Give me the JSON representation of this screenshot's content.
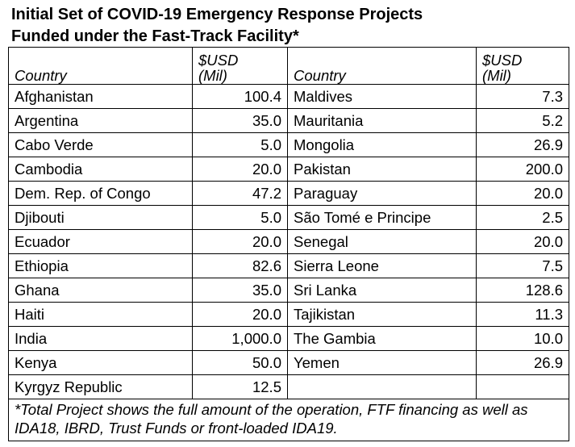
{
  "title": {
    "line1": "Initial Set of COVID-19 Emergency Response Projects",
    "line2": "Funded under the Fast-Track Facility*"
  },
  "table": {
    "headers": {
      "country_left": "Country",
      "usd_left": "$USD\n(Mil)",
      "country_right": "Country",
      "usd_right": "$USD\n(Mil)"
    },
    "rows": [
      {
        "country_left": "Afghanistan",
        "value_left": "100.4",
        "country_right": "Maldives",
        "value_right": "7.3"
      },
      {
        "country_left": "Argentina",
        "value_left": "35.0",
        "country_right": "Mauritania",
        "value_right": "5.2"
      },
      {
        "country_left": "Cabo Verde",
        "value_left": "5.0",
        "country_right": "Mongolia",
        "value_right": "26.9"
      },
      {
        "country_left": "Cambodia",
        "value_left": "20.0",
        "country_right": "Pakistan",
        "value_right": "200.0"
      },
      {
        "country_left": "Dem. Rep. of Congo",
        "value_left": "47.2",
        "country_right": "Paraguay",
        "value_right": "20.0"
      },
      {
        "country_left": "Djibouti",
        "value_left": "5.0",
        "country_right": "São Tomé e Principe",
        "value_right": "2.5"
      },
      {
        "country_left": "Ecuador",
        "value_left": "20.0",
        "country_right": "Senegal",
        "value_right": "20.0"
      },
      {
        "country_left": "Ethiopia",
        "value_left": "82.6",
        "country_right": "Sierra Leone",
        "value_right": "7.5"
      },
      {
        "country_left": "Ghana",
        "value_left": "35.0",
        "country_right": "Sri Lanka",
        "value_right": "128.6"
      },
      {
        "country_left": "Haiti",
        "value_left": "20.0",
        "country_right": "Tajikistan",
        "value_right": "11.3"
      },
      {
        "country_left": "India",
        "value_left": "1,000.0",
        "country_right": "The Gambia",
        "value_right": "10.0"
      },
      {
        "country_left": "Kenya",
        "value_left": "50.0",
        "country_right": "Yemen",
        "value_right": "26.9"
      },
      {
        "country_left": "Kyrgyz Republic",
        "value_left": "12.5",
        "country_right": "",
        "value_right": ""
      }
    ],
    "footnote": "*Total Project shows the full amount of the operation, FTF financing as well as IDA18, IBRD, Trust Funds or front-loaded IDA19."
  }
}
